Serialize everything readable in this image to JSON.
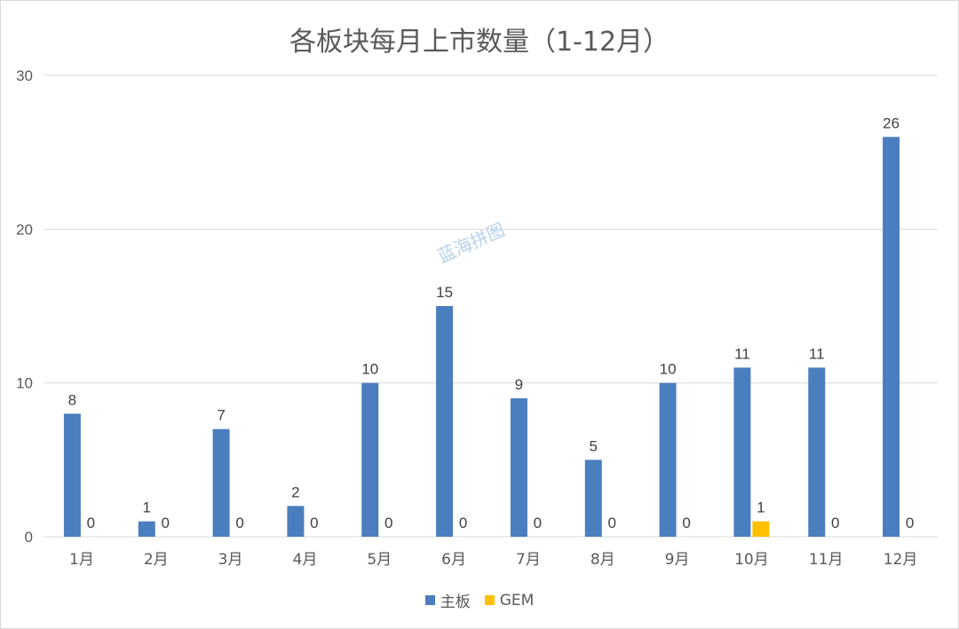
{
  "title": "各板块每月上市数量（1-12月）",
  "watermark": "蓝海拼图",
  "colors": {
    "main": "#4a7ebf",
    "gem": "#ffc000",
    "grid": "#d9d9d9",
    "text": "#595959"
  },
  "chart_data": {
    "type": "bar",
    "categories": [
      "1月",
      "2月",
      "3月",
      "4月",
      "5月",
      "6月",
      "7月",
      "8月",
      "9月",
      "10月",
      "11月",
      "12月"
    ],
    "series": [
      {
        "name": "主板",
        "values": [
          8,
          1,
          7,
          2,
          10,
          15,
          9,
          5,
          10,
          11,
          11,
          26
        ]
      },
      {
        "name": "GEM",
        "values": [
          0,
          0,
          0,
          0,
          0,
          0,
          0,
          0,
          0,
          1,
          0,
          0
        ]
      }
    ],
    "ylim": [
      0,
      30
    ],
    "yticks": [
      0,
      10,
      20,
      30
    ],
    "grid": true,
    "legend": "bottom",
    "data_labels": true
  }
}
